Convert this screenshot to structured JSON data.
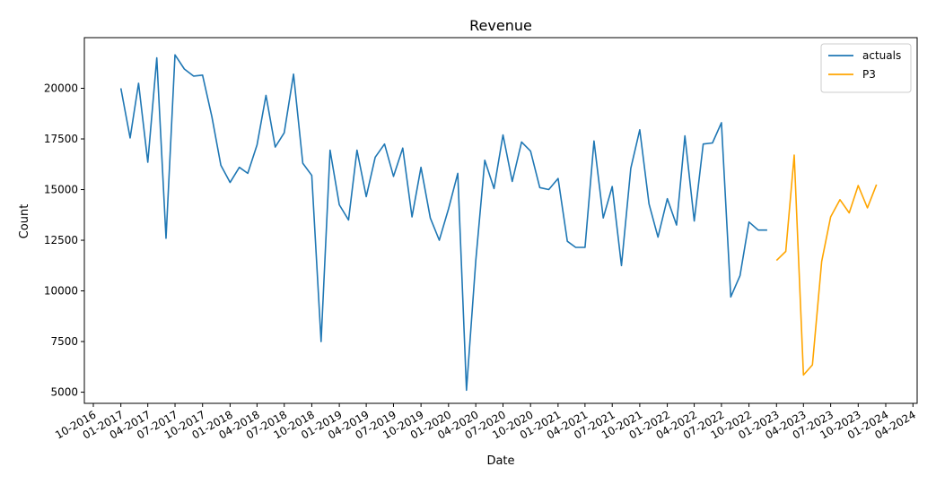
{
  "chart_data": {
    "type": "line",
    "title": "Revenue",
    "xlabel": "Date",
    "ylabel": "Count",
    "xlim": [
      "2016-09-01",
      "2024-04-15"
    ],
    "ylim": [
      4450,
      22500
    ],
    "x_ticks": [
      "10-2016",
      "01-2017",
      "04-2017",
      "07-2017",
      "10-2017",
      "01-2018",
      "04-2018",
      "07-2018",
      "10-2018",
      "01-2019",
      "04-2019",
      "07-2019",
      "10-2019",
      "01-2020",
      "04-2020",
      "07-2020",
      "10-2020",
      "01-2021",
      "04-2021",
      "07-2021",
      "10-2021",
      "01-2022",
      "04-2022",
      "07-2022",
      "10-2022",
      "01-2023",
      "04-2023",
      "07-2023",
      "10-2023",
      "01-2024",
      "04-2024"
    ],
    "y_ticks": [
      5000,
      7500,
      10000,
      12500,
      15000,
      17500,
      20000
    ],
    "legend_position": "top-right",
    "series": [
      {
        "name": "actuals",
        "color": "#1f77b4",
        "points": [
          [
            "2017-01-01",
            20000
          ],
          [
            "2017-02-01",
            17550
          ],
          [
            "2017-03-01",
            20250
          ],
          [
            "2017-04-01",
            16350
          ],
          [
            "2017-05-01",
            21500
          ],
          [
            "2017-06-01",
            12600
          ],
          [
            "2017-07-01",
            21650
          ],
          [
            "2017-08-01",
            20950
          ],
          [
            "2017-09-01",
            20600
          ],
          [
            "2017-10-01",
            20650
          ],
          [
            "2017-11-01",
            18600
          ],
          [
            "2017-12-01",
            16200
          ],
          [
            "2018-01-01",
            15350
          ],
          [
            "2018-02-01",
            16100
          ],
          [
            "2018-03-01",
            15800
          ],
          [
            "2018-04-01",
            17200
          ],
          [
            "2018-05-01",
            19650
          ],
          [
            "2018-06-01",
            17100
          ],
          [
            "2018-07-01",
            17800
          ],
          [
            "2018-08-01",
            20700
          ],
          [
            "2018-09-01",
            16300
          ],
          [
            "2018-10-01",
            15700
          ],
          [
            "2018-11-01",
            7500
          ],
          [
            "2018-12-01",
            16950
          ],
          [
            "2019-01-01",
            14250
          ],
          [
            "2019-02-01",
            13500
          ],
          [
            "2019-03-01",
            16950
          ],
          [
            "2019-04-01",
            14650
          ],
          [
            "2019-05-01",
            16600
          ],
          [
            "2019-06-01",
            17250
          ],
          [
            "2019-07-01",
            15650
          ],
          [
            "2019-08-01",
            17050
          ],
          [
            "2019-09-01",
            13650
          ],
          [
            "2019-10-01",
            16100
          ],
          [
            "2019-11-01",
            13600
          ],
          [
            "2019-12-01",
            12500
          ],
          [
            "2020-01-01",
            14050
          ],
          [
            "2020-02-01",
            15800
          ],
          [
            "2020-03-01",
            5100
          ],
          [
            "2020-04-01",
            11500
          ],
          [
            "2020-05-01",
            16450
          ],
          [
            "2020-06-01",
            15050
          ],
          [
            "2020-07-01",
            17700
          ],
          [
            "2020-08-01",
            15400
          ],
          [
            "2020-09-01",
            17350
          ],
          [
            "2020-10-01",
            16900
          ],
          [
            "2020-11-01",
            15100
          ],
          [
            "2020-12-01",
            15000
          ],
          [
            "2021-01-01",
            15550
          ],
          [
            "2021-02-01",
            12450
          ],
          [
            "2021-03-01",
            12150
          ],
          [
            "2021-04-01",
            12150
          ],
          [
            "2021-05-01",
            17400
          ],
          [
            "2021-06-01",
            13600
          ],
          [
            "2021-07-01",
            15150
          ],
          [
            "2021-08-01",
            11250
          ],
          [
            "2021-09-01",
            16050
          ],
          [
            "2021-10-01",
            17950
          ],
          [
            "2021-11-01",
            14300
          ],
          [
            "2021-12-01",
            12650
          ],
          [
            "2022-01-01",
            14550
          ],
          [
            "2022-02-01",
            13250
          ],
          [
            "2022-03-01",
            17650
          ],
          [
            "2022-04-01",
            13450
          ],
          [
            "2022-05-01",
            17250
          ],
          [
            "2022-06-01",
            17300
          ],
          [
            "2022-07-01",
            18300
          ],
          [
            "2022-08-01",
            9700
          ],
          [
            "2022-09-01",
            10750
          ],
          [
            "2022-10-01",
            13400
          ],
          [
            "2022-11-01",
            13000
          ],
          [
            "2022-12-01",
            13000
          ]
        ]
      },
      {
        "name": "P3",
        "color": "#ffa500",
        "points": [
          [
            "2023-01-01",
            11500
          ],
          [
            "2023-02-01",
            11950
          ],
          [
            "2023-03-01",
            16700
          ],
          [
            "2023-04-01",
            5850
          ],
          [
            "2023-05-01",
            6350
          ],
          [
            "2023-06-01",
            11450
          ],
          [
            "2023-07-01",
            13650
          ],
          [
            "2023-08-01",
            14500
          ],
          [
            "2023-09-01",
            13850
          ],
          [
            "2023-10-01",
            15200
          ],
          [
            "2023-11-01",
            14100
          ],
          [
            "2023-12-01",
            15250
          ]
        ]
      }
    ]
  }
}
